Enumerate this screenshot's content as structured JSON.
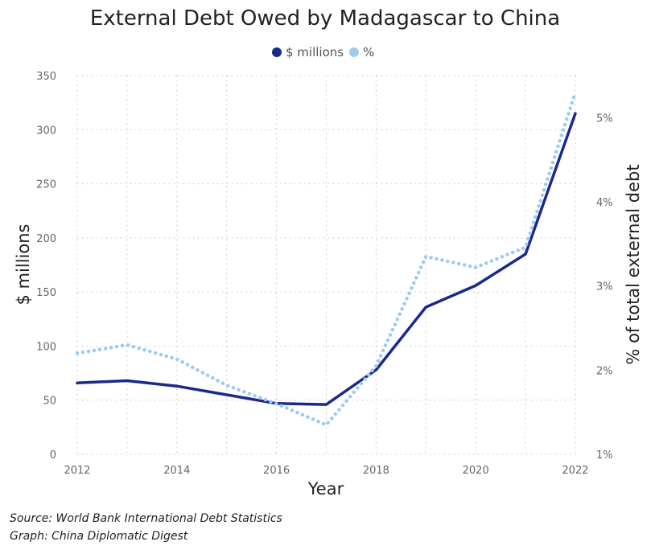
{
  "chart_data": {
    "type": "line",
    "title": "External Debt Owed by Madagascar to China",
    "xlabel": "Year",
    "ylabel": "$ millions",
    "y2label": "% of total external debt",
    "x": [
      2012,
      2013,
      2014,
      2015,
      2016,
      2017,
      2018,
      2019,
      2020,
      2021,
      2022
    ],
    "xticks": [
      "2012",
      "2014",
      "2016",
      "2018",
      "2020",
      "2022"
    ],
    "xlim": [
      2012,
      2022
    ],
    "ylim": [
      0,
      350
    ],
    "yticks": [
      "0",
      "50",
      "100",
      "150",
      "200",
      "250",
      "300",
      "350"
    ],
    "y2lim": [
      1,
      5.5
    ],
    "y2ticks": [
      "1%",
      "2%",
      "3%",
      "4%",
      "5%"
    ],
    "series": [
      {
        "name": "$ millions",
        "axis": "left",
        "style": "solid",
        "color": "#1a2a8c",
        "values": [
          66,
          68,
          63,
          55,
          47,
          46,
          78,
          136,
          156,
          185,
          315
        ]
      },
      {
        "name": "%",
        "axis": "right",
        "style": "dotted",
        "color": "#9ecbf0",
        "values": [
          2.2,
          2.3,
          2.13,
          1.82,
          1.6,
          1.35,
          2.05,
          3.35,
          3.22,
          3.46,
          5.3
        ]
      }
    ],
    "grid": true,
    "legend_position": "top-center"
  },
  "footer": {
    "source": "Source: World Bank International Debt Statistics",
    "graph": "Graph: China Diplomatic Digest"
  }
}
